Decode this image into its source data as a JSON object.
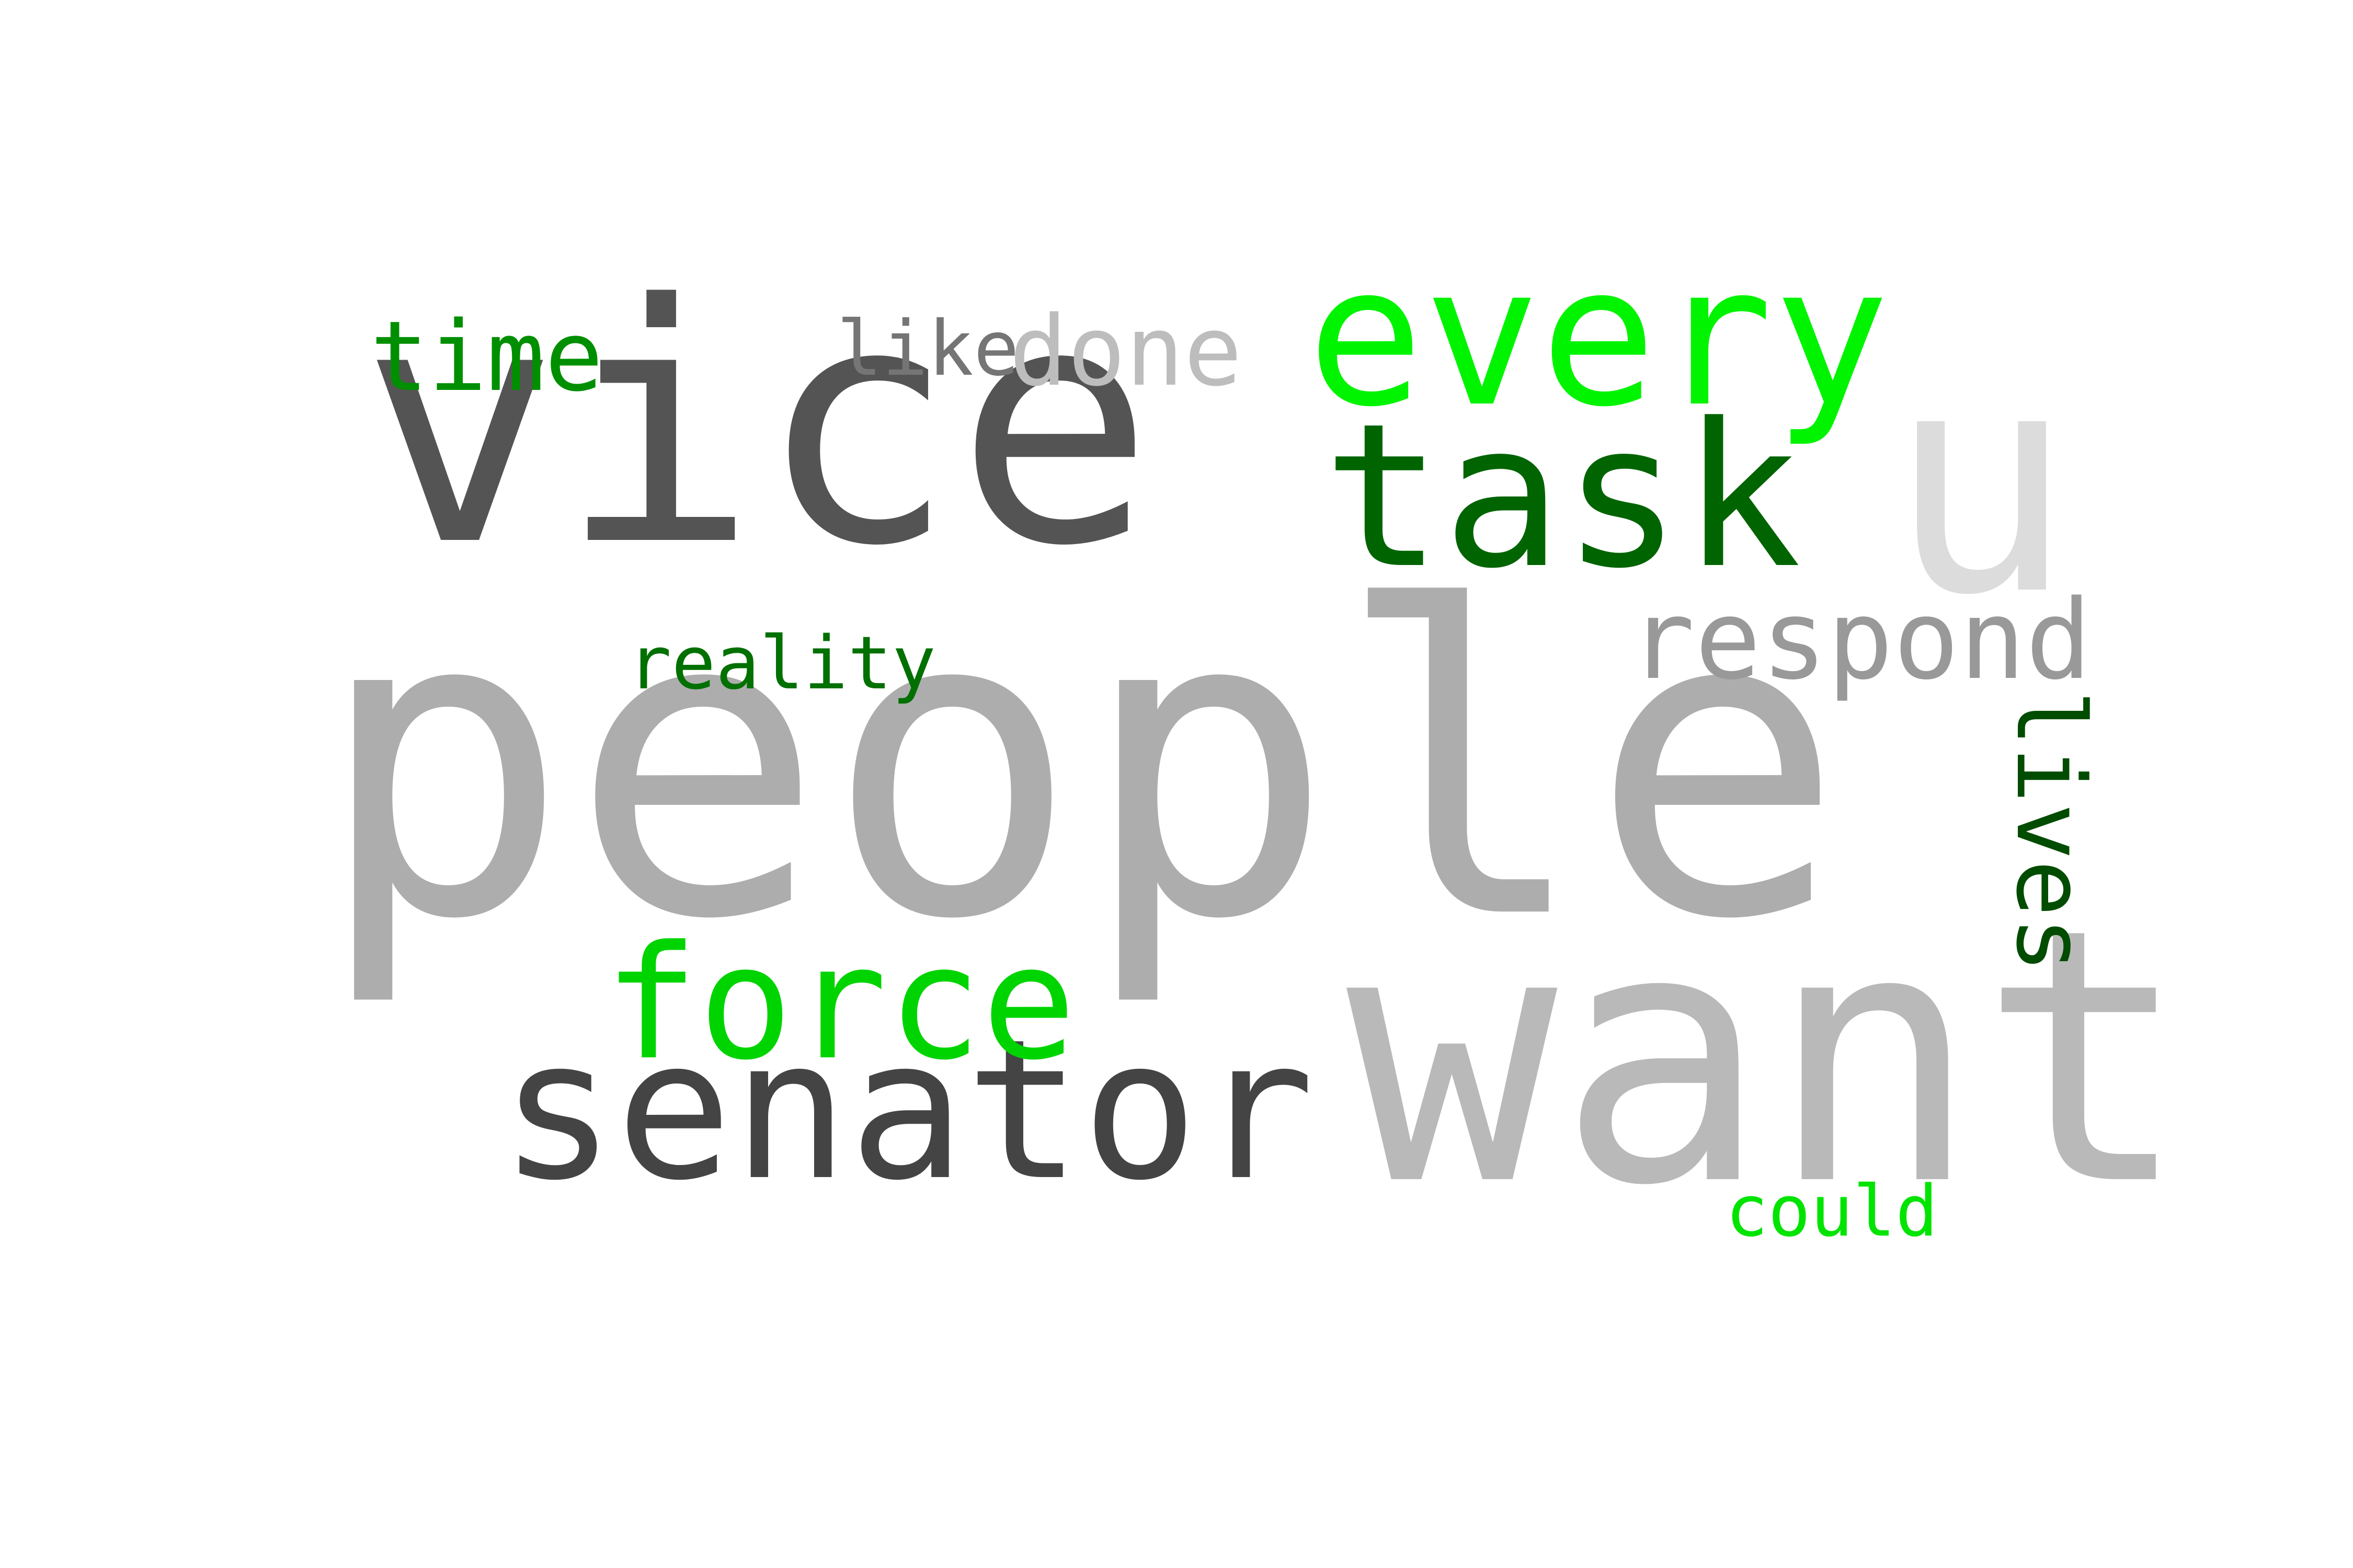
{
  "words": [
    {
      "id": "people",
      "text": "people",
      "color": "#adadad"
    },
    {
      "id": "vice",
      "text": "vice",
      "color": "#545454"
    },
    {
      "id": "want",
      "text": "want",
      "color": "#b9b9b9"
    },
    {
      "id": "u",
      "text": "u",
      "color": "#dcdcdc"
    },
    {
      "id": "senator",
      "text": "senator",
      "color": "#444444"
    },
    {
      "id": "every",
      "text": "every",
      "color": "#00f400"
    },
    {
      "id": "task",
      "text": "task",
      "color": "#006400"
    },
    {
      "id": "force",
      "text": "force",
      "color": "#00d400"
    },
    {
      "id": "respond",
      "text": "respond",
      "color": "#999999"
    },
    {
      "id": "lives",
      "text": "lives",
      "color": "#004c00"
    },
    {
      "id": "time",
      "text": "time",
      "color": "#008f00"
    },
    {
      "id": "done",
      "text": "done",
      "color": "#bdbdbd"
    },
    {
      "id": "like",
      "text": "like",
      "color": "#757575"
    },
    {
      "id": "reality",
      "text": "reality",
      "color": "#007000"
    },
    {
      "id": "could",
      "text": "could",
      "color": "#00e400"
    }
  ]
}
